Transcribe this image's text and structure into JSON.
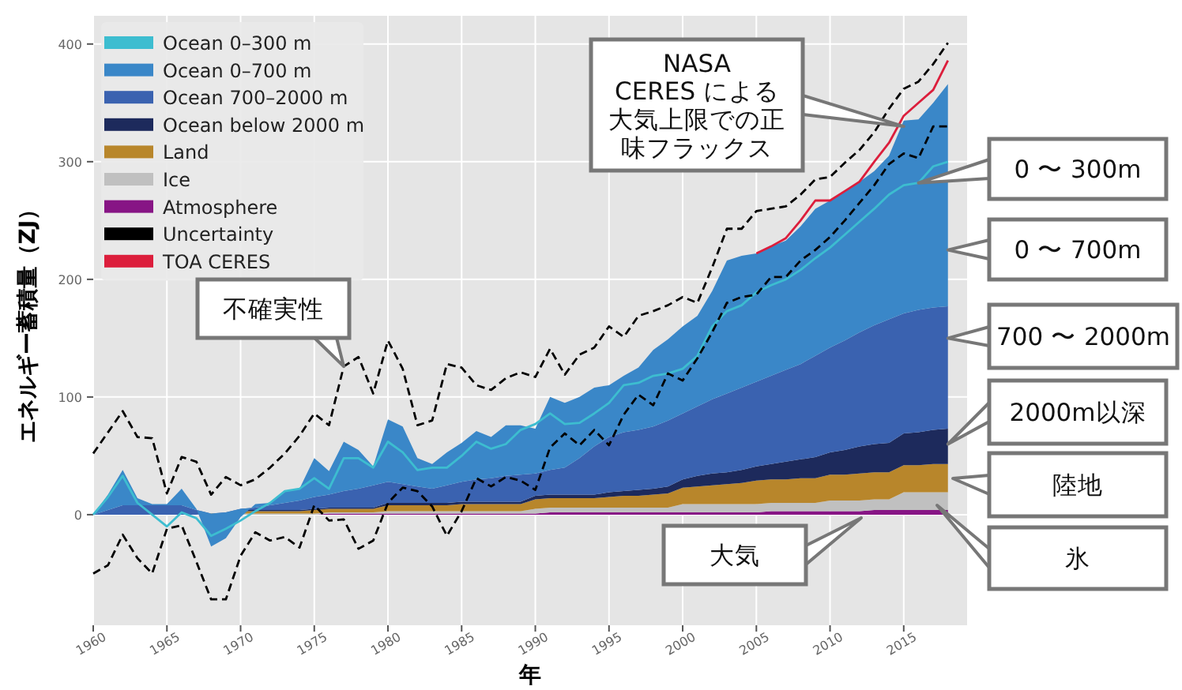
{
  "chart_data": {
    "type": "area",
    "stacked": true,
    "grid": true,
    "legend": "top left",
    "xlabel": "年",
    "ylabel": "エネルギー蓄積量（ZJ）",
    "xlim": [
      1960,
      2019.3
    ],
    "ylim": [
      -94,
      424
    ],
    "xticks": [
      1960,
      1965,
      1970,
      1975,
      1980,
      1985,
      1990,
      1995,
      2000,
      2005,
      2010,
      2015
    ],
    "yticks": [
      0,
      100,
      200,
      300,
      400
    ],
    "x": [
      1960,
      1961,
      1962,
      1963,
      1964,
      1965,
      1966,
      1967,
      1968,
      1969,
      1970,
      1971,
      1972,
      1973,
      1974,
      1975,
      1976,
      1977,
      1978,
      1979,
      1980,
      1981,
      1982,
      1983,
      1984,
      1985,
      1986,
      1987,
      1988,
      1989,
      1990,
      1991,
      1992,
      1993,
      1994,
      1995,
      1996,
      1997,
      1998,
      1999,
      2000,
      2001,
      2002,
      2003,
      2004,
      2005,
      2006,
      2007,
      2008,
      2009,
      2010,
      2011,
      2012,
      2013,
      2014,
      2015,
      2016,
      2017,
      2018
    ],
    "series": [
      {
        "name": "Atmosphere",
        "color": "#871585",
        "values": [
          0,
          0,
          0,
          0,
          0,
          0,
          0,
          0,
          0,
          0,
          0,
          0,
          0,
          0,
          0,
          0,
          1,
          1,
          1,
          1,
          1,
          1,
          1,
          1,
          1,
          1,
          1,
          1,
          1,
          1,
          1,
          2,
          2,
          2,
          2,
          2,
          2,
          2,
          2,
          2,
          2,
          2,
          2,
          2,
          2,
          2,
          3,
          3,
          3,
          3,
          3,
          3,
          3,
          4,
          4,
          4,
          4,
          4,
          4
        ]
      },
      {
        "name": "Ice",
        "color": "#c0c0c0",
        "values": [
          0,
          0,
          0,
          0,
          0,
          0,
          0,
          0,
          0,
          0,
          1,
          1,
          1,
          1,
          1,
          1,
          1,
          1,
          1,
          1,
          2,
          2,
          2,
          2,
          2,
          2,
          2,
          2,
          2,
          2,
          4,
          4,
          4,
          4,
          4,
          4,
          4,
          4,
          4,
          4,
          7,
          7,
          7,
          7,
          7,
          7,
          7,
          7,
          7,
          7,
          9,
          9,
          9,
          9,
          9,
          15,
          15,
          15,
          15
        ]
      },
      {
        "name": "Land",
        "color": "#b8862b",
        "values": [
          0,
          0,
          0,
          0,
          0,
          0,
          0,
          0,
          1,
          1,
          2,
          2,
          2,
          2,
          2,
          3,
          3,
          3,
          3,
          3,
          5,
          5,
          5,
          5,
          5,
          6,
          6,
          6,
          6,
          6,
          8,
          8,
          8,
          8,
          8,
          9,
          10,
          10,
          11,
          12,
          14,
          15,
          16,
          17,
          18,
          20,
          20,
          20,
          21,
          21,
          22,
          22,
          23,
          23,
          23,
          23,
          23,
          24,
          24
        ]
      },
      {
        "name": "Ocean below 2000 m",
        "color": "#1d2a5c",
        "values": [
          0,
          0,
          0,
          0,
          0,
          0,
          0,
          0,
          0,
          0,
          1,
          1,
          1,
          1,
          1,
          1,
          1,
          1,
          1,
          1,
          2,
          2,
          2,
          2,
          2,
          2,
          2,
          2,
          2,
          2,
          3,
          3,
          3,
          3,
          3,
          4,
          4,
          5,
          5,
          6,
          7,
          9,
          10,
          10,
          11,
          12,
          13,
          15,
          16,
          18,
          19,
          21,
          23,
          24,
          25,
          27,
          28,
          29,
          30
        ]
      },
      {
        "name": "Ocean 700–2000 m",
        "color": "#3a62b0",
        "values": [
          0,
          4,
          8,
          8,
          8,
          8,
          8,
          4,
          0,
          1,
          1,
          2,
          4,
          6,
          8,
          10,
          11,
          14,
          16,
          19,
          18,
          16,
          14,
          12,
          15,
          17,
          19,
          20,
          22,
          23,
          19,
          21,
          23,
          31,
          41,
          47,
          50,
          51,
          53,
          56,
          56,
          59,
          63,
          67,
          70,
          72,
          75,
          78,
          81,
          86,
          89,
          93,
          97,
          101,
          105,
          102,
          104,
          104,
          104
        ]
      },
      {
        "name": "Ocean 0–700 m",
        "color": "#3a87c8",
        "values": [
          0,
          13,
          30,
          6,
          1,
          1,
          14,
          1,
          -28,
          -22,
          -7,
          3,
          2,
          10,
          10,
          33,
          20,
          42,
          33,
          16,
          53,
          49,
          24,
          21,
          28,
          33,
          41,
          35,
          43,
          42,
          38,
          62,
          55,
          52,
          50,
          44,
          48,
          53,
          65,
          69,
          74,
          77,
          92,
          113,
          112,
          109,
          110,
          110,
          117,
          125,
          125,
          127,
          128,
          131,
          139,
          164,
          162,
          174,
          189
        ]
      },
      {
        "name": "Ocean 0–300 m",
        "type": "line",
        "color": "#3dbdd0",
        "values": [
          0,
          15,
          33,
          10,
          0,
          -10,
          2,
          -3,
          -18,
          -12,
          -5,
          3,
          10,
          20,
          22,
          31,
          22,
          48,
          48,
          40,
          62,
          53,
          38,
          40,
          40,
          50,
          62,
          56,
          60,
          72,
          77,
          86,
          77,
          78,
          86,
          95,
          110,
          112,
          118,
          120,
          124,
          135,
          160,
          173,
          178,
          189,
          195,
          200,
          208,
          218,
          227,
          238,
          249,
          260,
          272,
          280,
          282,
          296,
          300
        ]
      },
      {
        "name": "Uncertainty",
        "type": "line",
        "color": "#000000",
        "line_style": "dashed",
        "values": [
          52,
          70,
          88,
          66,
          65,
          18,
          49,
          45,
          17,
          32,
          25,
          30,
          40,
          52,
          67,
          86,
          76,
          126,
          134,
          103,
          148,
          124,
          76,
          80,
          128,
          125,
          110,
          106,
          116,
          121,
          117,
          141,
          119,
          136,
          142,
          160,
          151,
          169,
          173,
          178,
          185,
          180,
          210,
          243,
          243,
          258,
          260,
          262,
          272,
          285,
          287,
          299,
          310,
          325,
          345,
          362,
          368,
          383,
          401
        ]
      },
      {
        "type": "line",
        "color": "#000000",
        "line_style": "dashed",
        "values": [
          -50,
          -43,
          -17,
          -37,
          -50,
          -12,
          -9,
          -40,
          -72,
          -72,
          -35,
          -15,
          -22,
          -19,
          -28,
          8,
          -5,
          -4,
          -29,
          -22,
          10,
          23,
          20,
          7,
          -18,
          3,
          31,
          24,
          32,
          29,
          21,
          57,
          69,
          59,
          72,
          59,
          85,
          102,
          93,
          120,
          114,
          133,
          155,
          180,
          185,
          187,
          202,
          202,
          216,
          225,
          236,
          250,
          265,
          280,
          298,
          307,
          303,
          330,
          330
        ]
      },
      {
        "name": "TOA CERES",
        "type": "line",
        "color": "#dc1e3c",
        "x": [
          2005,
          2006,
          2007,
          2008,
          2009,
          2010,
          2011,
          2012,
          2013,
          2014,
          2015,
          2016,
          2017,
          2018
        ],
        "values": [
          222,
          228,
          235,
          250,
          267,
          267,
          275,
          283,
          300,
          316,
          339,
          350,
          361,
          386
        ]
      }
    ],
    "annotations": [
      {
        "text": "NASA\nCERES による大気上限での正味フラックス",
        "x": 2015,
        "y": 330
      },
      {
        "text": "0 〜 300m",
        "x": 2016,
        "y": 282
      },
      {
        "text": "0 〜 700m",
        "x": 2018,
        "y": 225
      },
      {
        "text": "700 〜 2000m",
        "x": 2018,
        "y": 150
      },
      {
        "text": "2000m以深",
        "x": 2018,
        "y": 60
      },
      "陸地",
      "氷",
      "大気",
      {
        "text": "不確実性",
        "x": 1977,
        "y": 126
      }
    ]
  }
}
